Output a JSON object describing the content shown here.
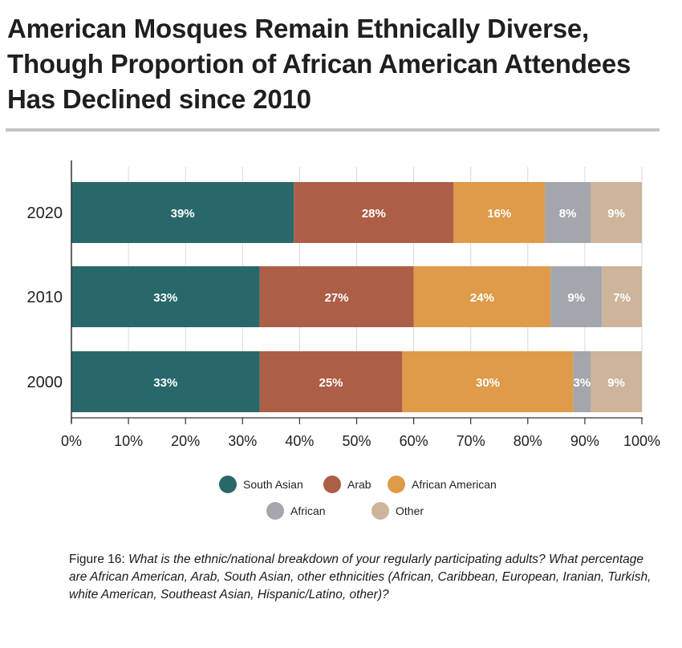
{
  "title": "American Mosques Remain Ethnically Diverse, Though Proportion of African American Attendees Has Declined since 2010",
  "caption": {
    "figure": "Figure 16",
    "text": "What is the ethnic/national breakdown of your regularly participating adults? What percentage are African American, Arab, South Asian, other ethnicities (African, Caribbean, European, Iranian, Turkish, white American, Southeast Asian, Hispanic/Latino, other)?"
  },
  "chart_data": {
    "type": "bar",
    "orientation": "horizontal",
    "stacked": true,
    "categories": [
      "2020",
      "2010",
      "2000"
    ],
    "series": [
      {
        "name": "South Asian",
        "color": "#28686b",
        "values": [
          39,
          33,
          33
        ],
        "labels": [
          "39%",
          "33%",
          "33%"
        ]
      },
      {
        "name": "Arab",
        "color": "#ad5e47",
        "values": [
          28,
          27,
          25
        ],
        "labels": [
          "28%",
          "27%",
          "25%"
        ]
      },
      {
        "name": "African American",
        "color": "#df9b4a",
        "values": [
          16,
          24,
          30
        ],
        "labels": [
          "16%",
          "24%",
          "30%"
        ]
      },
      {
        "name": "African",
        "color": "#a3a6ad",
        "values": [
          8,
          9,
          3
        ],
        "labels": [
          "8%",
          "9%",
          "3%"
        ]
      },
      {
        "name": "Other",
        "color": "#cdb49a",
        "values": [
          9,
          7,
          9
        ],
        "labels": [
          "9%",
          "7%",
          "9%"
        ]
      }
    ],
    "xlim": [
      0,
      100
    ],
    "xticks": [
      "0%",
      "10%",
      "20%",
      "30%",
      "40%",
      "50%",
      "60%",
      "70%",
      "80%",
      "90%",
      "100%"
    ],
    "grid": true,
    "legend": "bottom"
  }
}
